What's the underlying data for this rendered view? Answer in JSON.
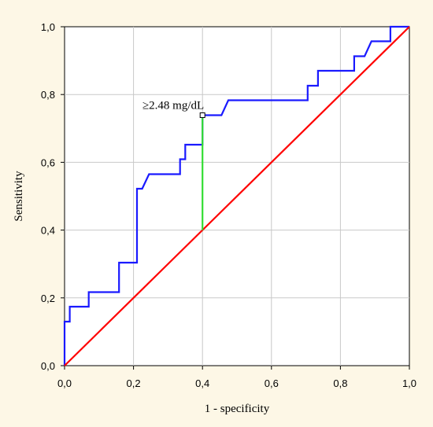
{
  "chart_data": {
    "type": "line",
    "title": "",
    "xlabel": "1 - specificity",
    "ylabel": "Sensitivity",
    "xlim": [
      0,
      1
    ],
    "ylim": [
      0,
      1
    ],
    "xticks": [
      "0,0",
      "0,2",
      "0,4",
      "0,6",
      "0,8",
      "1,0"
    ],
    "yticks": [
      "0,0",
      "0,2",
      "0,4",
      "0,6",
      "0,8",
      "1,0"
    ],
    "grid": true,
    "series": [
      {
        "color": "#1a1aff",
        "points": [
          [
            0.0,
            0.0
          ],
          [
            0.0,
            0.13
          ],
          [
            0.015,
            0.13
          ],
          [
            0.015,
            0.174
          ],
          [
            0.07,
            0.174
          ],
          [
            0.07,
            0.217
          ],
          [
            0.158,
            0.217
          ],
          [
            0.158,
            0.304
          ],
          [
            0.21,
            0.304
          ],
          [
            0.21,
            0.522
          ],
          [
            0.225,
            0.522
          ],
          [
            0.245,
            0.565
          ],
          [
            0.335,
            0.565
          ],
          [
            0.335,
            0.609
          ],
          [
            0.35,
            0.609
          ],
          [
            0.35,
            0.652
          ],
          [
            0.4,
            0.652
          ],
          [
            0.4,
            0.739
          ],
          [
            0.455,
            0.739
          ],
          [
            0.475,
            0.783
          ],
          [
            0.705,
            0.783
          ],
          [
            0.705,
            0.826
          ],
          [
            0.735,
            0.826
          ],
          [
            0.735,
            0.87
          ],
          [
            0.84,
            0.87
          ],
          [
            0.84,
            0.913
          ],
          [
            0.87,
            0.913
          ],
          [
            0.89,
            0.957
          ],
          [
            0.945,
            0.957
          ],
          [
            0.945,
            1.0
          ],
          [
            1.0,
            1.0
          ]
        ]
      },
      {
        "color": "#ff0000",
        "points": [
          [
            0,
            0
          ],
          [
            1,
            1
          ]
        ]
      }
    ],
    "annotation": {
      "text": "≥2.48 mg/dL",
      "point": [
        0.4,
        0.739
      ],
      "line_from": [
        0.4,
        0.4
      ],
      "line_color": "#33dd33"
    },
    "colors": {
      "background": "#fdf7e6",
      "plot_background": "#ffffff",
      "grid": "#c8c8c8"
    }
  }
}
